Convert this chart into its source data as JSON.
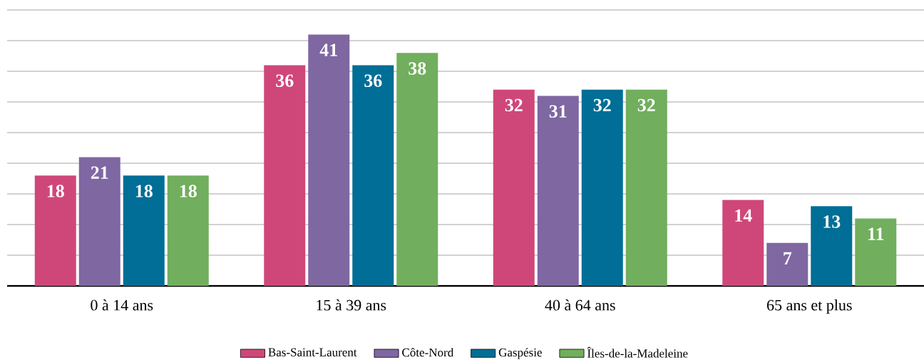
{
  "chart_data": {
    "type": "bar",
    "categories": [
      "0 à 14 ans",
      "15 à 39 ans",
      "40 à 64 ans",
      "65 ans et plus"
    ],
    "series": [
      {
        "name": "Bas-Saint-Laurent",
        "color": "#cf4778",
        "values": [
          18,
          36,
          32,
          14
        ]
      },
      {
        "name": "Côte-Nord",
        "color": "#7f67a2",
        "values": [
          21,
          41,
          31,
          7
        ]
      },
      {
        "name": "Gaspésie",
        "color": "#006e96",
        "values": [
          18,
          36,
          32,
          13
        ]
      },
      {
        "name": "Îles-de-la-Madeleine",
        "color": "#71ae5d",
        "values": [
          18,
          38,
          32,
          11
        ]
      }
    ],
    "ylim": [
      0,
      45
    ],
    "yticks": [
      {
        "value": 0,
        "label": null
      },
      {
        "value": 5,
        "label": null
      },
      {
        "value": 10,
        "label": null
      },
      {
        "value": 15,
        "label": null
      },
      {
        "value": 20,
        "label": null
      },
      {
        "value": 25,
        "label": null
      },
      {
        "value": 30,
        "label": null
      },
      {
        "value": 35,
        "label": null
      },
      {
        "value": 40,
        "label": null
      },
      {
        "value": 45,
        "label": null
      }
    ],
    "tick_labels": "x",
    "grid": "y",
    "data_labels": true,
    "legend": "bottom"
  }
}
